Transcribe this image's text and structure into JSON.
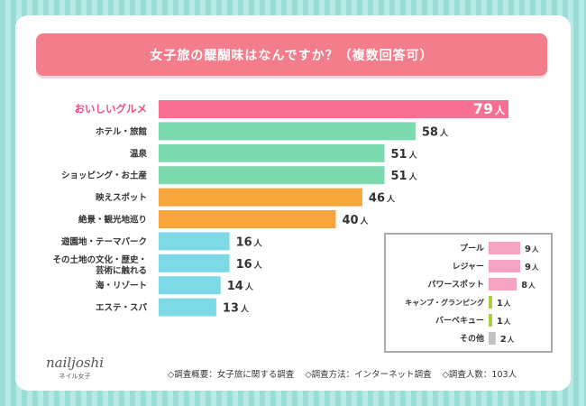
{
  "title": "女子旅の醍醐味はなんですか？（複数回答可）",
  "chart_data": {
    "type": "bar",
    "orientation": "horizontal",
    "unit": "人",
    "max_value": 79,
    "categories": [
      "おいしいグルメ",
      "ホテル・旅館",
      "温泉",
      "ショッピング・お土産",
      "映えスポット",
      "絶景・観光地巡り",
      "遊園地・テーマパーク",
      "その土地の文化・歴史・\n芸術に触れる",
      "海・リゾート",
      "エステ・スパ"
    ],
    "values": [
      79,
      58,
      51,
      51,
      46,
      40,
      16,
      16,
      14,
      13
    ],
    "bar_colors": [
      "#f76f92",
      "#7cd9ad",
      "#7cd9ad",
      "#7cd9ad",
      "#f8a53c",
      "#f8a53c",
      "#7dd9e6",
      "#7dd9e6",
      "#7dd9e6",
      "#7dd9e6"
    ],
    "highlight_label_color": "#f0507d",
    "inset": {
      "categories": [
        "プール",
        "レジャー",
        "パワースポット",
        "キャンプ・グランピング",
        "バーベキュー",
        "その他"
      ],
      "values": [
        9,
        9,
        8,
        1,
        1,
        2
      ],
      "bar_colors": [
        "#f4a3c3",
        "#f4a3c3",
        "#f4a3c3",
        "#a9cc46",
        "#a9cc46",
        "#c2c2c2"
      ]
    }
  },
  "footer": {
    "summary": "◇調査概要：女子旅に関する調査",
    "method": "◇調査方法：インターネット調査",
    "respondents": "◇調査人数：103人"
  },
  "logo": {
    "text": "nailjoshi",
    "subtext": "ネイル女子"
  }
}
